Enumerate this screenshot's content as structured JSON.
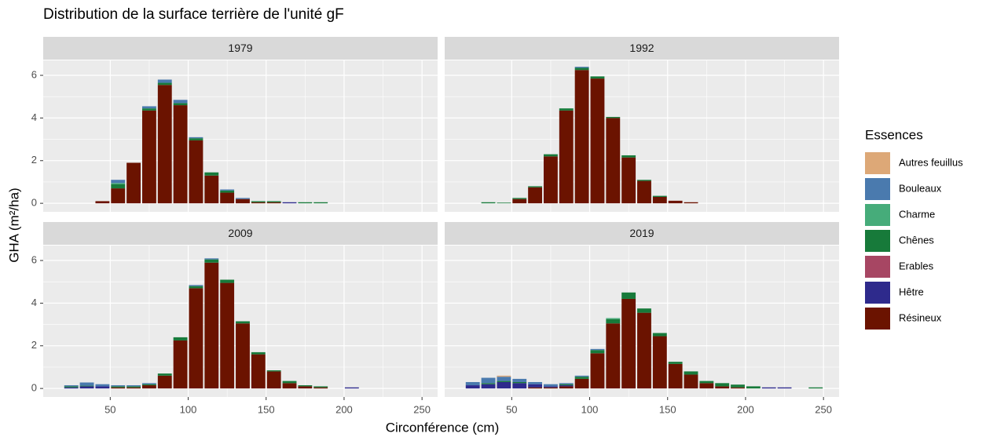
{
  "chart_data": {
    "type": "bar",
    "stacked": true,
    "title": "Distribution de la surface terrière de l'unité gF",
    "x_label": "Circonférence (cm)",
    "y_label": "GHA (m²/ha)",
    "legend_title": "Essences",
    "x": [
      25,
      35,
      45,
      55,
      65,
      75,
      85,
      95,
      105,
      115,
      125,
      135,
      145,
      155,
      165,
      175,
      185,
      195,
      205,
      215,
      225,
      235,
      245
    ],
    "bar_width": 9,
    "xlim": [
      7,
      260
    ],
    "xticks": [
      50,
      100,
      150,
      200,
      250
    ],
    "ylim": [
      -0.4,
      6.7
    ],
    "yticks": [
      0,
      2,
      4,
      6
    ],
    "grid": true,
    "series": [
      {
        "name": "Autres feuillus",
        "color": "#DDA877"
      },
      {
        "name": "Bouleaux",
        "color": "#4A7AAE"
      },
      {
        "name": "Charme",
        "color": "#46AC7A"
      },
      {
        "name": "Chênes",
        "color": "#177A3A"
      },
      {
        "name": "Erables",
        "color": "#A74663"
      },
      {
        "name": "Hêtre",
        "color": "#2E2A8C"
      },
      {
        "name": "Résineux",
        "color": "#6B1300"
      }
    ],
    "facets": [
      {
        "label": "1979",
        "values": [
          [
            0,
            0,
            0,
            0,
            0,
            0,
            0,
            0,
            0,
            0,
            0,
            0,
            0,
            0,
            0,
            0,
            0,
            0,
            0,
            0,
            0,
            0,
            0
          ],
          [
            0,
            0,
            0,
            0.15,
            0,
            0.1,
            0.15,
            0.15,
            0.05,
            0,
            0.05,
            0.05,
            0,
            0,
            0,
            0,
            0,
            0,
            0,
            0,
            0,
            0,
            0
          ],
          [
            0,
            0,
            0,
            0.05,
            0,
            0,
            0,
            0,
            0,
            0,
            0,
            0,
            0,
            0,
            0,
            0,
            0,
            0,
            0,
            0,
            0,
            0,
            0
          ],
          [
            0,
            0,
            0,
            0.2,
            0,
            0.1,
            0.1,
            0.1,
            0.1,
            0.15,
            0.1,
            0,
            0.05,
            0.05,
            0,
            0.05,
            0.05,
            0,
            0,
            0,
            0,
            0,
            0
          ],
          [
            0,
            0,
            0,
            0,
            0,
            0,
            0,
            0,
            0,
            0,
            0,
            0,
            0,
            0,
            0,
            0,
            0,
            0,
            0,
            0,
            0,
            0,
            0
          ],
          [
            0,
            0,
            0,
            0,
            0,
            0,
            0,
            0,
            0,
            0,
            0,
            0,
            0,
            0,
            0.05,
            0,
            0,
            0,
            0,
            0,
            0,
            0,
            0
          ],
          [
            0,
            0,
            0.1,
            0.7,
            1.9,
            4.35,
            5.55,
            4.6,
            2.95,
            1.3,
            0.5,
            0.2,
            0.05,
            0.05,
            0,
            0,
            0,
            0,
            0,
            0,
            0,
            0,
            0
          ]
        ]
      },
      {
        "label": "1992",
        "values": [
          [
            0,
            0,
            0,
            0,
            0,
            0,
            0,
            0,
            0,
            0,
            0,
            0,
            0,
            0,
            0,
            0,
            0,
            0,
            0,
            0,
            0,
            0,
            0
          ],
          [
            0,
            0,
            0,
            0,
            0,
            0,
            0,
            0.05,
            0,
            0,
            0,
            0,
            0,
            0,
            0,
            0,
            0,
            0,
            0,
            0,
            0,
            0,
            0
          ],
          [
            0,
            0,
            0,
            0,
            0,
            0,
            0,
            0,
            0,
            0,
            0,
            0,
            0,
            0,
            0,
            0,
            0,
            0,
            0,
            0,
            0,
            0,
            0
          ],
          [
            0,
            0.05,
            0.03,
            0.05,
            0.05,
            0.1,
            0.1,
            0.1,
            0.1,
            0.05,
            0.1,
            0.05,
            0.05,
            0,
            0,
            0,
            0,
            0,
            0,
            0,
            0,
            0,
            0
          ],
          [
            0,
            0,
            0,
            0,
            0,
            0,
            0,
            0,
            0,
            0,
            0,
            0,
            0,
            0,
            0,
            0,
            0,
            0,
            0,
            0,
            0,
            0,
            0
          ],
          [
            0,
            0,
            0,
            0,
            0,
            0,
            0,
            0,
            0,
            0,
            0,
            0,
            0,
            0,
            0,
            0,
            0,
            0,
            0,
            0,
            0,
            0,
            0
          ],
          [
            0,
            0,
            0,
            0.2,
            0.75,
            2.2,
            4.35,
            6.25,
            5.85,
            4.0,
            2.15,
            1.05,
            0.3,
            0.12,
            0.05,
            0,
            0,
            0,
            0,
            0,
            0,
            0,
            0
          ]
        ]
      },
      {
        "label": "2009",
        "values": [
          [
            0,
            0,
            0,
            0,
            0,
            0,
            0,
            0,
            0,
            0,
            0,
            0,
            0,
            0,
            0,
            0,
            0,
            0,
            0,
            0,
            0,
            0,
            0
          ],
          [
            0.05,
            0.15,
            0.1,
            0.05,
            0.05,
            0.05,
            0,
            0,
            0.05,
            0.05,
            0,
            0,
            0,
            0,
            0,
            0,
            0,
            0,
            0,
            0,
            0,
            0,
            0
          ],
          [
            0,
            0,
            0,
            0,
            0,
            0,
            0,
            0,
            0,
            0,
            0,
            0,
            0,
            0,
            0,
            0,
            0,
            0,
            0,
            0,
            0,
            0,
            0
          ],
          [
            0.05,
            0.03,
            0,
            0.05,
            0.05,
            0.05,
            0.1,
            0.15,
            0.1,
            0.15,
            0.15,
            0.1,
            0.1,
            0.05,
            0.1,
            0.05,
            0.05,
            0,
            0,
            0,
            0,
            0,
            0
          ],
          [
            0,
            0,
            0,
            0,
            0,
            0,
            0,
            0,
            0,
            0,
            0,
            0,
            0,
            0,
            0,
            0,
            0,
            0,
            0,
            0,
            0,
            0,
            0
          ],
          [
            0.05,
            0.1,
            0.1,
            0,
            0,
            0,
            0,
            0,
            0,
            0,
            0,
            0,
            0,
            0,
            0,
            0,
            0,
            0,
            0.05,
            0,
            0,
            0,
            0
          ],
          [
            0,
            0,
            0,
            0.05,
            0.05,
            0.15,
            0.6,
            2.25,
            4.7,
            5.9,
            4.95,
            3.05,
            1.6,
            0.8,
            0.25,
            0.1,
            0.05,
            0,
            0,
            0,
            0,
            0,
            0
          ]
        ]
      },
      {
        "label": "2019",
        "values": [
          [
            0,
            0,
            0.05,
            0,
            0,
            0,
            0,
            0,
            0,
            0,
            0,
            0,
            0,
            0,
            0,
            0,
            0,
            0,
            0,
            0,
            0,
            0,
            0
          ],
          [
            0.15,
            0.25,
            0.2,
            0.15,
            0.1,
            0.1,
            0.05,
            0.05,
            0.05,
            0,
            0,
            0,
            0,
            0,
            0,
            0,
            0,
            0,
            0,
            0,
            0,
            0,
            0
          ],
          [
            0,
            0,
            0,
            0,
            0,
            0,
            0,
            0,
            0,
            0.05,
            0,
            0,
            0,
            0,
            0,
            0,
            0,
            0,
            0,
            0,
            0,
            0,
            0
          ],
          [
            0,
            0.05,
            0.05,
            0.05,
            0,
            0,
            0.05,
            0.1,
            0.15,
            0.2,
            0.3,
            0.2,
            0.15,
            0.1,
            0.15,
            0.1,
            0.15,
            0.13,
            0.1,
            0,
            0,
            0,
            0.05
          ],
          [
            0,
            0,
            0,
            0,
            0,
            0,
            0,
            0,
            0,
            0,
            0,
            0,
            0,
            0,
            0,
            0,
            0,
            0,
            0,
            0,
            0,
            0,
            0
          ],
          [
            0.15,
            0.2,
            0.3,
            0.25,
            0.15,
            0.05,
            0.05,
            0,
            0,
            0,
            0,
            0,
            0,
            0,
            0,
            0,
            0,
            0,
            0,
            0.05,
            0.05,
            0,
            0
          ],
          [
            0,
            0,
            0,
            0,
            0.05,
            0.05,
            0.1,
            0.45,
            1.65,
            3.05,
            4.2,
            3.55,
            2.45,
            1.15,
            0.65,
            0.25,
            0.1,
            0.05,
            0,
            0,
            0,
            0,
            0
          ]
        ]
      }
    ]
  }
}
